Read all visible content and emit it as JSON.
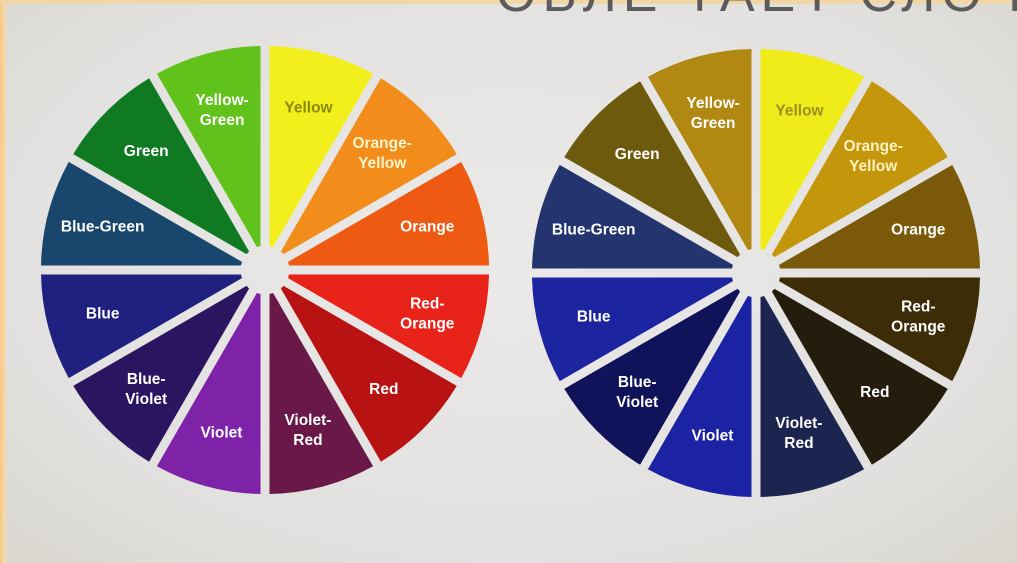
{
  "header_text": "ОБЛЕ ТАЕТ СЛОЧ",
  "wheels": [
    {
      "name": "saturated-wheel",
      "segments": [
        {
          "lines": [
            "Yellow"
          ],
          "fill": "#f2ef1c",
          "text": "#8a8a12"
        },
        {
          "lines": [
            "Orange-",
            "Yellow"
          ],
          "fill": "#f28c1a",
          "text": "#fff6c9"
        },
        {
          "lines": [
            "Orange"
          ],
          "fill": "#ee5a12",
          "text": "#ffffff"
        },
        {
          "lines": [
            "Red-",
            "Orange"
          ],
          "fill": "#e8231a",
          "text": "#ffffff"
        },
        {
          "lines": [
            "Red"
          ],
          "fill": "#b81212",
          "text": "#ffffff"
        },
        {
          "lines": [
            "Violet-",
            "Red"
          ],
          "fill": "#6a1848",
          "text": "#ffffff"
        },
        {
          "lines": [
            "Violet"
          ],
          "fill": "#7e22a8",
          "text": "#ffffff"
        },
        {
          "lines": [
            "Blue-",
            "Violet"
          ],
          "fill": "#2c1560",
          "text": "#ffffff"
        },
        {
          "lines": [
            "Blue"
          ],
          "fill": "#202080",
          "text": "#ffffff"
        },
        {
          "lines": [
            "Blue-Green"
          ],
          "fill": "#18466c",
          "text": "#ffffff"
        },
        {
          "lines": [
            "Green"
          ],
          "fill": "#107a22",
          "text": "#ffffff"
        },
        {
          "lines": [
            "Yellow-",
            "Green"
          ],
          "fill": "#62c21c",
          "text": "#ffffff"
        }
      ]
    },
    {
      "name": "shaded-wheel",
      "segments": [
        {
          "lines": [
            "Yellow"
          ],
          "fill": "#f0ec1a",
          "text": "#9a8f22"
        },
        {
          "lines": [
            "Orange-",
            "Yellow"
          ],
          "fill": "#c4960c",
          "text": "#fff2c0"
        },
        {
          "lines": [
            "Orange"
          ],
          "fill": "#7a5a0a",
          "text": "#ffffff"
        },
        {
          "lines": [
            "Red-",
            "Orange"
          ],
          "fill": "#3c2c08",
          "text": "#ffffff"
        },
        {
          "lines": [
            "Red"
          ],
          "fill": "#241c0c",
          "text": "#ffffff"
        },
        {
          "lines": [
            "Violet-",
            "Red"
          ],
          "fill": "#1c2450",
          "text": "#ffffff"
        },
        {
          "lines": [
            "Violet"
          ],
          "fill": "#1c22a4",
          "text": "#ffffff"
        },
        {
          "lines": [
            "Blue-",
            "Violet"
          ],
          "fill": "#10125a",
          "text": "#ffffff"
        },
        {
          "lines": [
            "Blue"
          ],
          "fill": "#1c24a0",
          "text": "#ffffff"
        },
        {
          "lines": [
            "Blue-Green"
          ],
          "fill": "#24346e",
          "text": "#ffffff"
        },
        {
          "lines": [
            "Green"
          ],
          "fill": "#6e5a0c",
          "text": "#ffffff"
        },
        {
          "lines": [
            "Yellow-",
            "Green"
          ],
          "fill": "#b08812",
          "text": "#ffffff"
        }
      ]
    }
  ]
}
